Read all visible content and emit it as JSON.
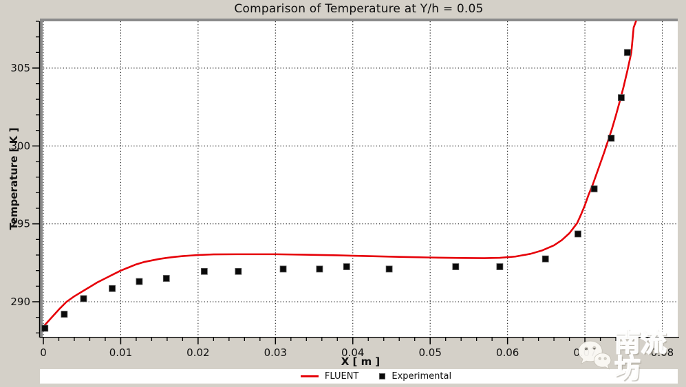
{
  "window": {
    "background": "#d4d0c8"
  },
  "chart_data": {
    "type": "line",
    "title": "Comparison of Temperature at Y/h = 0.05",
    "xlabel": "X [ m ]",
    "ylabel": "Temperature [ K ]",
    "xlim": [
      0,
      0.082
    ],
    "ylim": [
      287.75,
      308.0
    ],
    "grid": {
      "shown": true,
      "style": "dotted",
      "color": "#1a1a1a"
    },
    "x_major_ticks": [
      0,
      0.01,
      0.02,
      0.03,
      0.04,
      0.05,
      0.06,
      0.07,
      0.08
    ],
    "x_tick_labels": [
      "0",
      "0.01",
      "0.02",
      "0.03",
      "0.04",
      "0.05",
      "0.06",
      "0.07",
      "0.08"
    ],
    "x_minor_step": 0.002,
    "y_major_ticks": [
      290,
      295,
      300,
      305
    ],
    "y_tick_labels": [
      "290",
      "295",
      "300",
      "305"
    ],
    "y_minor_step": 1,
    "legend_position": "bottom",
    "series": [
      {
        "name": "FLUENT",
        "type": "line",
        "color": "#e60008",
        "points": [
          [
            0,
            288.4
          ],
          [
            0.001,
            288.95
          ],
          [
            0.002,
            289.5
          ],
          [
            0.003,
            290.0
          ],
          [
            0.004,
            290.35
          ],
          [
            0.005,
            290.65
          ],
          [
            0.006,
            290.95
          ],
          [
            0.007,
            291.25
          ],
          [
            0.008,
            291.5
          ],
          [
            0.009,
            291.75
          ],
          [
            0.01,
            292.0
          ],
          [
            0.011,
            292.2
          ],
          [
            0.012,
            292.4
          ],
          [
            0.013,
            292.55
          ],
          [
            0.014,
            292.65
          ],
          [
            0.015,
            292.75
          ],
          [
            0.016,
            292.82
          ],
          [
            0.017,
            292.88
          ],
          [
            0.018,
            292.93
          ],
          [
            0.02,
            293.0
          ],
          [
            0.022,
            293.04
          ],
          [
            0.025,
            293.05
          ],
          [
            0.03,
            293.05
          ],
          [
            0.034,
            293.02
          ],
          [
            0.038,
            292.98
          ],
          [
            0.042,
            292.93
          ],
          [
            0.046,
            292.88
          ],
          [
            0.05,
            292.84
          ],
          [
            0.054,
            292.81
          ],
          [
            0.057,
            292.8
          ],
          [
            0.059,
            292.82
          ],
          [
            0.061,
            292.9
          ],
          [
            0.063,
            293.08
          ],
          [
            0.0645,
            293.3
          ],
          [
            0.066,
            293.62
          ],
          [
            0.067,
            293.95
          ],
          [
            0.068,
            294.4
          ],
          [
            0.069,
            295.05
          ],
          [
            0.0695,
            295.6
          ],
          [
            0.07,
            296.2
          ],
          [
            0.0705,
            296.9
          ],
          [
            0.071,
            297.5
          ],
          [
            0.0715,
            298.2
          ],
          [
            0.072,
            298.9
          ],
          [
            0.0725,
            299.6
          ],
          [
            0.073,
            300.35
          ],
          [
            0.0735,
            301.1
          ],
          [
            0.074,
            301.95
          ],
          [
            0.0745,
            302.85
          ],
          [
            0.075,
            303.8
          ],
          [
            0.0755,
            304.85
          ],
          [
            0.076,
            306.0
          ],
          [
            0.0763,
            307.6
          ],
          [
            0.0766,
            308.0
          ]
        ]
      },
      {
        "name": "Experimental",
        "type": "scatter",
        "color": "#0a0a0a",
        "marker": "square",
        "points": [
          [
            0.0002,
            288.3
          ],
          [
            0.0027,
            289.2
          ],
          [
            0.0052,
            290.2
          ],
          [
            0.0089,
            290.85
          ],
          [
            0.0124,
            291.3
          ],
          [
            0.0159,
            291.5
          ],
          [
            0.0208,
            291.95
          ],
          [
            0.0252,
            291.95
          ],
          [
            0.031,
            292.1
          ],
          [
            0.0357,
            292.1
          ],
          [
            0.0392,
            292.25
          ],
          [
            0.0447,
            292.1
          ],
          [
            0.0533,
            292.25
          ],
          [
            0.059,
            292.25
          ],
          [
            0.0649,
            292.75
          ],
          [
            0.0691,
            294.35
          ],
          [
            0.0712,
            297.25
          ],
          [
            0.0734,
            300.5
          ],
          [
            0.0747,
            303.1
          ],
          [
            0.0755,
            306.0
          ]
        ]
      }
    ]
  },
  "legend": {
    "items": [
      {
        "label": "FLUENT",
        "swatch": "line",
        "color": "#e60008"
      },
      {
        "label": "Experimental",
        "swatch": "square",
        "color": "#0a0a0a"
      }
    ]
  },
  "watermark": {
    "text": "南流坊",
    "icon": "wechat-icon"
  }
}
